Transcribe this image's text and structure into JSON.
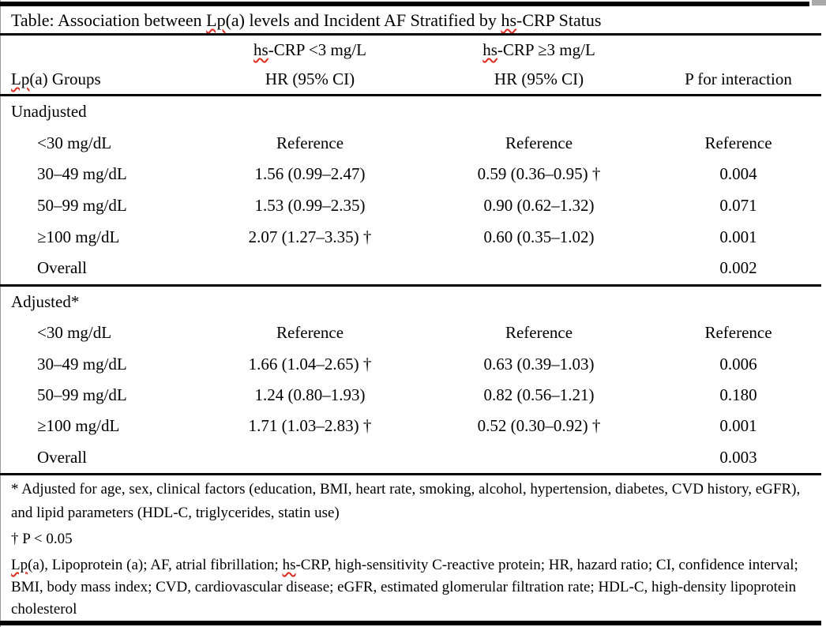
{
  "colors": {
    "text": "#000000",
    "rule": "#000000",
    "squiggle": "#e02a1d",
    "scrollbar_fragment": "#a9a9a9",
    "page_edge": "#9a9a9a"
  },
  "document": {
    "title": {
      "p1": "Table: Association between ",
      "p2": "Lp",
      "p3": "(a) levels and Incident AF Stratified by ",
      "p4": "hs",
      "p5": "-CRP Status"
    },
    "table": {
      "header": {
        "group_col": {
          "p1": "Lp",
          "p2": "(a) Groups"
        },
        "low_col": {
          "p1": "hs",
          "p2": "-CRP <3 mg/L"
        },
        "high_col": {
          "p1": "hs",
          "p2": "-CRP ≥3 mg/L"
        },
        "hr_label_low": "HR (95% CI)",
        "hr_label_high": "HR (95% CI)",
        "p_col": "P for interaction"
      },
      "sections": [
        {
          "label": "Unadjusted",
          "rows": [
            {
              "group": "<30 mg/dL",
              "hr_low": "Reference",
              "hr_high": "Reference",
              "p": "Reference"
            },
            {
              "group": "30–49 mg/dL",
              "hr_low": "1.56 (0.99–2.47)",
              "hr_high": "0.59 (0.36–0.95) †",
              "p": "0.004"
            },
            {
              "group": "50–99 mg/dL",
              "hr_low": "1.53 (0.99–2.35)",
              "hr_high": "0.90 (0.62–1.32)",
              "p": "0.071"
            },
            {
              "group": "≥100 mg/dL",
              "hr_low": "2.07 (1.27–3.35) †",
              "hr_high": "0.60 (0.35–1.02)",
              "p": "0.001"
            },
            {
              "group": "Overall",
              "hr_low": "",
              "hr_high": "",
              "p": "0.002"
            }
          ]
        },
        {
          "label": "Adjusted*",
          "rows": [
            {
              "group": "<30 mg/dL",
              "hr_low": "Reference",
              "hr_high": "Reference",
              "p": "Reference"
            },
            {
              "group": "30–49 mg/dL",
              "hr_low": "1.66 (1.04–2.65) †",
              "hr_high": "0.63 (0.39–1.03)",
              "p": "0.006"
            },
            {
              "group": "50–99 mg/dL",
              "hr_low": "1.24 (0.80–1.93)",
              "hr_high": "0.82 (0.56–1.21)",
              "p": "0.180"
            },
            {
              "group": "≥100 mg/dL",
              "hr_low": "1.71 (1.03–2.83) †",
              "hr_high": "0.52 (0.30–0.92) †",
              "p": "0.001"
            },
            {
              "group": "Overall",
              "hr_low": "",
              "hr_high": "",
              "p": "0.003"
            }
          ]
        }
      ]
    },
    "footnotes": {
      "adjusted": "* Adjusted for age, sex, clinical factors (education, BMI, heart rate, smoking, alcohol, hypertension, diabetes, CVD history, eGFR), and lipid parameters (HDL-C, triglycerides, statin use)",
      "dagger": "† P < 0.05",
      "abbrev": {
        "p1": "Lp",
        "p2": "(a), Lipoprotein (a); AF, atrial fibrillation; ",
        "p3": "hs",
        "p4": "-CRP, high-sensitivity C-reactive protein; HR, hazard ratio; CI, confidence interval; BMI, body mass index; CVD, cardiovascular disease; eGFR, estimated glomerular filtration rate; HDL-C, high-density lipoprotein cholesterol"
      }
    }
  }
}
